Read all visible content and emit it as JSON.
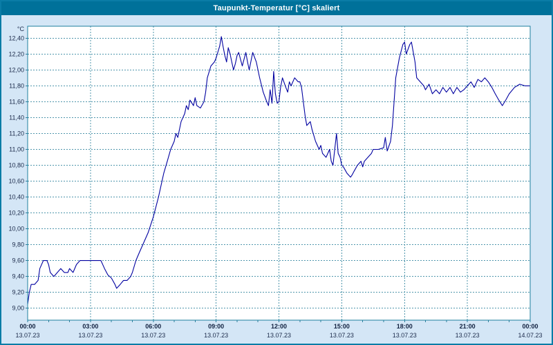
{
  "window": {
    "title": "Taupunkt-Temperatur [°C] skaliert"
  },
  "chart_data": {
    "type": "line",
    "title": "Taupunkt-Temperatur [°C] skaliert",
    "ylabel": "°C",
    "xlabel": "",
    "grid": "dashed",
    "legend": "none",
    "line_color": "#0000a0",
    "grid_color": "#4d95ab",
    "background_color": "#d4e6f6",
    "plot_background": "#ffffff",
    "ylim": [
      8.85,
      12.55
    ],
    "xlim": [
      0,
      24
    ],
    "y_ticks": [
      "9,00",
      "9,20",
      "9,40",
      "9,60",
      "9,80",
      "10,00",
      "10,20",
      "10,40",
      "10,60",
      "10,80",
      "11,00",
      "11,20",
      "11,40",
      "11,60",
      "11,80",
      "12,00",
      "12,20",
      "12,40"
    ],
    "y_tick_values": [
      9.0,
      9.2,
      9.4,
      9.6,
      9.8,
      10.0,
      10.2,
      10.4,
      10.6,
      10.8,
      11.0,
      11.2,
      11.4,
      11.6,
      11.8,
      12.0,
      12.2,
      12.4
    ],
    "x_ticks": [
      {
        "hour": 0,
        "time": "00:00",
        "date": "13.07.23"
      },
      {
        "hour": 3,
        "time": "03:00",
        "date": "13.07.23"
      },
      {
        "hour": 6,
        "time": "06:00",
        "date": "13.07.23"
      },
      {
        "hour": 9,
        "time": "09:00",
        "date": "13.07.23"
      },
      {
        "hour": 12,
        "time": "12:00",
        "date": "13.07.23"
      },
      {
        "hour": 15,
        "time": "15:00",
        "date": "13.07.23"
      },
      {
        "hour": 18,
        "time": "18:00",
        "date": "13.07.23"
      },
      {
        "hour": 21,
        "time": "21:00",
        "date": "13.07.23"
      },
      {
        "hour": 24,
        "time": "00:00",
        "date": "14.07.23"
      }
    ],
    "series": [
      {
        "name": "Taupunkt-Temperatur",
        "points": [
          [
            0,
            9.05
          ],
          [
            0.08,
            9.2
          ],
          [
            0.17,
            9.3
          ],
          [
            0.33,
            9.3
          ],
          [
            0.5,
            9.35
          ],
          [
            0.58,
            9.5
          ],
          [
            0.75,
            9.6
          ],
          [
            0.92,
            9.6
          ],
          [
            1.0,
            9.55
          ],
          [
            1.08,
            9.45
          ],
          [
            1.25,
            9.4
          ],
          [
            1.42,
            9.45
          ],
          [
            1.58,
            9.5
          ],
          [
            1.75,
            9.45
          ],
          [
            1.92,
            9.45
          ],
          [
            2.0,
            9.5
          ],
          [
            2.17,
            9.45
          ],
          [
            2.33,
            9.55
          ],
          [
            2.5,
            9.6
          ],
          [
            2.75,
            9.6
          ],
          [
            3.0,
            9.6
          ],
          [
            3.17,
            9.6
          ],
          [
            3.33,
            9.6
          ],
          [
            3.5,
            9.6
          ],
          [
            3.67,
            9.5
          ],
          [
            3.83,
            9.42
          ],
          [
            4.0,
            9.38
          ],
          [
            4.17,
            9.3
          ],
          [
            4.25,
            9.25
          ],
          [
            4.42,
            9.3
          ],
          [
            4.58,
            9.35
          ],
          [
            4.75,
            9.35
          ],
          [
            4.92,
            9.4
          ],
          [
            5.0,
            9.45
          ],
          [
            5.17,
            9.6
          ],
          [
            5.33,
            9.7
          ],
          [
            5.5,
            9.8
          ],
          [
            5.75,
            9.95
          ],
          [
            6.0,
            10.15
          ],
          [
            6.25,
            10.4
          ],
          [
            6.5,
            10.7
          ],
          [
            6.67,
            10.85
          ],
          [
            6.83,
            11.0
          ],
          [
            7.0,
            11.1
          ],
          [
            7.08,
            11.2
          ],
          [
            7.17,
            11.15
          ],
          [
            7.33,
            11.35
          ],
          [
            7.5,
            11.45
          ],
          [
            7.58,
            11.55
          ],
          [
            7.67,
            11.5
          ],
          [
            7.75,
            11.62
          ],
          [
            7.92,
            11.55
          ],
          [
            8.0,
            11.65
          ],
          [
            8.08,
            11.55
          ],
          [
            8.25,
            11.52
          ],
          [
            8.42,
            11.6
          ],
          [
            8.5,
            11.72
          ],
          [
            8.58,
            11.9
          ],
          [
            8.75,
            12.05
          ],
          [
            8.92,
            12.1
          ],
          [
            9.0,
            12.15
          ],
          [
            9.08,
            12.22
          ],
          [
            9.17,
            12.3
          ],
          [
            9.25,
            12.42
          ],
          [
            9.33,
            12.3
          ],
          [
            9.42,
            12.18
          ],
          [
            9.5,
            12.1
          ],
          [
            9.58,
            12.28
          ],
          [
            9.67,
            12.2
          ],
          [
            9.75,
            12.1
          ],
          [
            9.83,
            12.0
          ],
          [
            9.92,
            12.08
          ],
          [
            10.0,
            12.18
          ],
          [
            10.08,
            12.22
          ],
          [
            10.25,
            12.05
          ],
          [
            10.42,
            12.22
          ],
          [
            10.5,
            12.1
          ],
          [
            10.58,
            12.0
          ],
          [
            10.75,
            12.22
          ],
          [
            10.92,
            12.1
          ],
          [
            11.0,
            12.0
          ],
          [
            11.08,
            11.9
          ],
          [
            11.25,
            11.72
          ],
          [
            11.42,
            11.6
          ],
          [
            11.5,
            11.55
          ],
          [
            11.58,
            11.75
          ],
          [
            11.67,
            11.58
          ],
          [
            11.75,
            11.98
          ],
          [
            11.83,
            11.7
          ],
          [
            11.92,
            11.58
          ],
          [
            12.0,
            11.6
          ],
          [
            12.08,
            11.78
          ],
          [
            12.17,
            11.9
          ],
          [
            12.33,
            11.78
          ],
          [
            12.42,
            11.72
          ],
          [
            12.5,
            11.85
          ],
          [
            12.58,
            11.8
          ],
          [
            12.75,
            11.9
          ],
          [
            12.92,
            11.85
          ],
          [
            13.0,
            11.85
          ],
          [
            13.08,
            11.78
          ],
          [
            13.25,
            11.42
          ],
          [
            13.33,
            11.3
          ],
          [
            13.5,
            11.35
          ],
          [
            13.58,
            11.25
          ],
          [
            13.75,
            11.1
          ],
          [
            13.92,
            11.0
          ],
          [
            14.0,
            11.05
          ],
          [
            14.08,
            10.95
          ],
          [
            14.25,
            10.9
          ],
          [
            14.42,
            11.0
          ],
          [
            14.5,
            10.85
          ],
          [
            14.58,
            10.8
          ],
          [
            14.75,
            11.2
          ],
          [
            14.83,
            10.95
          ],
          [
            14.92,
            10.9
          ],
          [
            15.0,
            10.8
          ],
          [
            15.08,
            10.78
          ],
          [
            15.25,
            10.7
          ],
          [
            15.42,
            10.65
          ],
          [
            15.5,
            10.68
          ],
          [
            15.58,
            10.72
          ],
          [
            15.75,
            10.8
          ],
          [
            15.92,
            10.85
          ],
          [
            16.0,
            10.78
          ],
          [
            16.08,
            10.85
          ],
          [
            16.25,
            10.9
          ],
          [
            16.42,
            10.95
          ],
          [
            16.5,
            11.0
          ],
          [
            16.75,
            11.0
          ],
          [
            17.0,
            11.02
          ],
          [
            17.08,
            11.15
          ],
          [
            17.17,
            10.98
          ],
          [
            17.33,
            11.1
          ],
          [
            17.42,
            11.3
          ],
          [
            17.5,
            11.6
          ],
          [
            17.58,
            11.9
          ],
          [
            17.75,
            12.15
          ],
          [
            17.92,
            12.32
          ],
          [
            18.0,
            12.35
          ],
          [
            18.08,
            12.2
          ],
          [
            18.25,
            12.32
          ],
          [
            18.33,
            12.35
          ],
          [
            18.5,
            12.1
          ],
          [
            18.58,
            11.9
          ],
          [
            18.75,
            11.85
          ],
          [
            18.92,
            11.8
          ],
          [
            19.0,
            11.75
          ],
          [
            19.17,
            11.82
          ],
          [
            19.33,
            11.7
          ],
          [
            19.5,
            11.75
          ],
          [
            19.67,
            11.7
          ],
          [
            19.83,
            11.78
          ],
          [
            20.0,
            11.72
          ],
          [
            20.17,
            11.78
          ],
          [
            20.33,
            11.7
          ],
          [
            20.5,
            11.78
          ],
          [
            20.67,
            11.72
          ],
          [
            20.83,
            11.75
          ],
          [
            21.0,
            11.8
          ],
          [
            21.17,
            11.85
          ],
          [
            21.33,
            11.78
          ],
          [
            21.5,
            11.88
          ],
          [
            21.67,
            11.85
          ],
          [
            21.83,
            11.9
          ],
          [
            22.0,
            11.85
          ],
          [
            22.17,
            11.78
          ],
          [
            22.33,
            11.7
          ],
          [
            22.5,
            11.62
          ],
          [
            22.67,
            11.55
          ],
          [
            22.83,
            11.62
          ],
          [
            23.0,
            11.7
          ],
          [
            23.25,
            11.78
          ],
          [
            23.5,
            11.82
          ],
          [
            23.75,
            11.8
          ],
          [
            24.0,
            11.8
          ]
        ]
      }
    ]
  }
}
